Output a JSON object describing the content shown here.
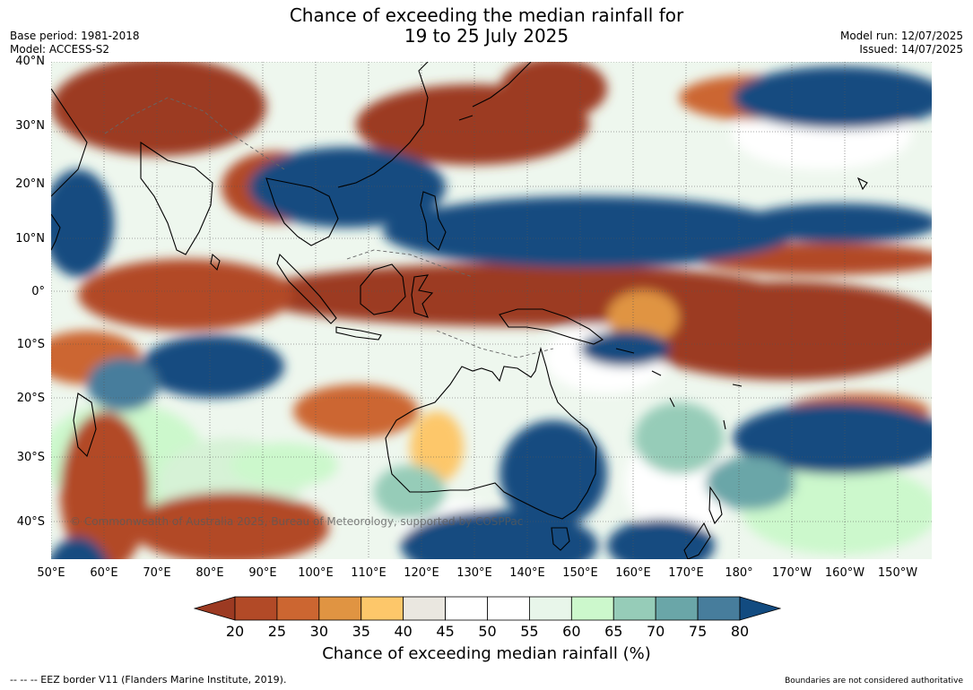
{
  "title": {
    "line1": "Chance of exceeding the median rainfall for",
    "line2": "19 to 25 July 2025"
  },
  "meta_left": {
    "base_period": "Base period: 1981-2018",
    "model": "Model: ACCESS-S2"
  },
  "meta_right": {
    "model_run": "Model run: 12/07/2025",
    "issued": "Issued: 14/07/2025"
  },
  "map": {
    "lat_labels": [
      "40°N",
      "30°N",
      "20°N",
      "10°N",
      "0°",
      "10°S",
      "20°S",
      "30°S",
      "40°S"
    ],
    "lon_labels": [
      "50°E",
      "60°E",
      "70°E",
      "80°E",
      "90°E",
      "100°E",
      "110°E",
      "120°E",
      "130°E",
      "140°E",
      "150°E",
      "160°E",
      "170°E",
      "180°",
      "170°W",
      "160°W",
      "150°W"
    ],
    "copyright": "© Commonwealth of Australia 2025, Bureau of Meteorology, supported by COSPPac"
  },
  "colorbar": {
    "ticks": [
      "20",
      "25",
      "30",
      "35",
      "40",
      "45",
      "50",
      "55",
      "60",
      "65",
      "70",
      "75",
      "80"
    ],
    "colors": [
      "#9c3a22",
      "#b24a27",
      "#cc6631",
      "#e09442",
      "#fdc76a",
      "#eae7e0",
      "#ffffff",
      "#ffffff",
      "#e8f6ea",
      "#ccf8cc",
      "#96ccb8",
      "#6aa6a8",
      "#477d9c",
      "#124b80"
    ],
    "label": "Chance of exceeding median rainfall (%)"
  },
  "footer": {
    "left": "--  --  -- EEZ border V11 (Flanders Marine Institute, 2019).",
    "right": "Boundaries are not considered authoritative"
  }
}
